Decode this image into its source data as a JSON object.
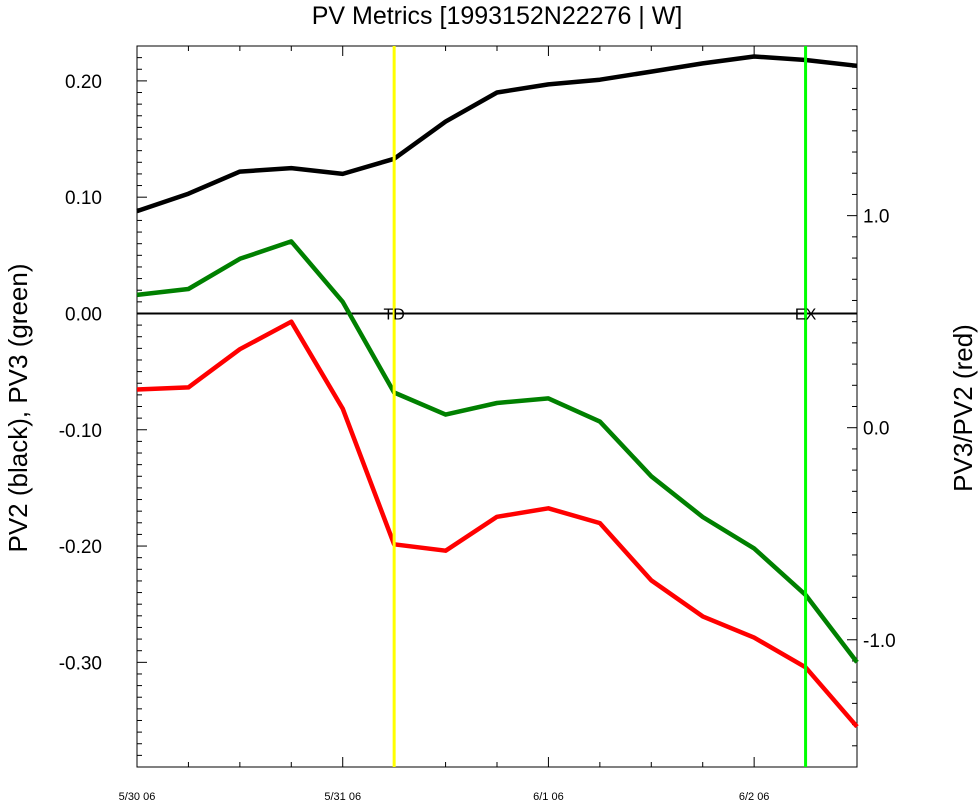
{
  "chart_data": {
    "type": "line",
    "title": "PV Metrics [1993152N22276 | W]",
    "left_ylabel": "PV2 (black), PV3 (green)",
    "right_ylabel": "PV3/PV2 (red)",
    "x": [
      0,
      0.25,
      0.5,
      0.75,
      1.0,
      1.25,
      1.5,
      1.75,
      2.0,
      2.25,
      2.5,
      2.75,
      3.0,
      3.25,
      3.5
    ],
    "x_ticks": [
      {
        "value": 0,
        "label": "5/30 06"
      },
      {
        "value": 1,
        "label": "5/31 06"
      },
      {
        "value": 2,
        "label": "6/1 06"
      },
      {
        "value": 3,
        "label": "6/2 06"
      }
    ],
    "xlim": [
      0,
      3.5
    ],
    "left_ylim": [
      -0.39,
      0.23
    ],
    "left_yticks": [
      0.2,
      0.1,
      0.0,
      -0.1,
      -0.2,
      -0.3
    ],
    "left_yticklabels": [
      "0.20",
      "0.10",
      "0.00",
      "-0.10",
      "-0.20",
      "-0.30"
    ],
    "right_ylim": [
      -1.6,
      1.8
    ],
    "right_yticks": [
      1.0,
      0.0,
      -1.0
    ],
    "right_yticklabels": [
      "1.0",
      "0.0",
      "-1.0"
    ],
    "series": [
      {
        "name": "PV2",
        "axis": "left",
        "color": "#000000",
        "values": [
          0.088,
          0.103,
          0.122,
          0.125,
          0.12,
          0.133,
          0.165,
          0.19,
          0.197,
          0.201,
          0.208,
          0.215,
          0.221,
          0.218,
          0.213
        ]
      },
      {
        "name": "PV3",
        "axis": "left",
        "color": "#008000",
        "values": [
          0.016,
          0.021,
          0.047,
          0.062,
          0.01,
          -0.068,
          -0.087,
          -0.077,
          -0.073,
          -0.093,
          -0.14,
          -0.175,
          -0.202,
          -0.242,
          -0.3
        ]
      },
      {
        "name": "PV3/PV2",
        "axis": "right",
        "color": "#ff0000",
        "values": [
          0.18,
          0.19,
          0.37,
          0.5,
          0.09,
          -0.55,
          -0.58,
          -0.42,
          -0.38,
          -0.45,
          -0.72,
          -0.89,
          -0.99,
          -1.13,
          -1.41
        ]
      }
    ],
    "zero_line": 0.0,
    "markers": [
      {
        "label": "TD",
        "x": 1.25,
        "color": "#ffff00"
      },
      {
        "label": "EX",
        "x": 3.25,
        "color": "#00ff00"
      }
    ],
    "grid": false
  }
}
